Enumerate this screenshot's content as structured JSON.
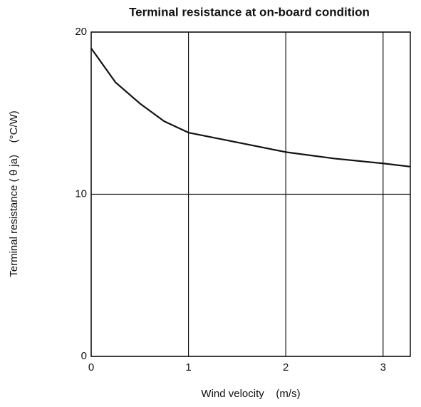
{
  "chart_data": {
    "type": "line",
    "title": "Terminal resistance at on-board condition",
    "xlabel": "Wind velocity    (m/s)",
    "ylabel": "Terminal resistance ( θ ja)    (°C/W)",
    "x": [
      0,
      0.25,
      0.5,
      0.75,
      1,
      1.5,
      2,
      2.5,
      3,
      3.28
    ],
    "series": [
      {
        "color": "#111111",
        "values": [
          19.0,
          16.9,
          15.6,
          14.5,
          13.8,
          13.2,
          12.6,
          12.2,
          11.9,
          11.7
        ]
      }
    ],
    "xlim": [
      0,
      3.28
    ],
    "xticks": [
      0,
      1,
      2,
      3
    ],
    "ylim": [
      0,
      20
    ],
    "yticks": [
      0,
      10,
      20
    ],
    "grid": true
  }
}
